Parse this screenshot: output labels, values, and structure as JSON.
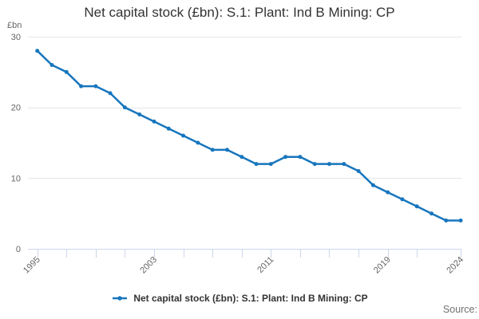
{
  "source": {
    "label": "Source:"
  },
  "colors": {
    "series": "#1776bd",
    "gridline": "#e6e6e6",
    "axis_line": "#ccd6eb",
    "tick": "#ccd6eb",
    "axis_label_text": "#666666",
    "title_text": "#333333",
    "legend_text": "#333333",
    "source_text": "#707070",
    "background": "#ffffff"
  },
  "chart_data": {
    "type": "line",
    "title": "Net capital stock (£bn): S.1: Plant: Ind B Mining: CP",
    "unit_label": "£bn",
    "x": [
      1995,
      1996,
      1997,
      1998,
      1999,
      2000,
      2001,
      2002,
      2003,
      2004,
      2005,
      2006,
      2007,
      2008,
      2009,
      2010,
      2011,
      2012,
      2013,
      2014,
      2015,
      2016,
      2017,
      2018,
      2019,
      2020,
      2021,
      2022,
      2023,
      2024
    ],
    "series": [
      {
        "name": "Net capital stock (£bn): S.1: Plant: Ind B Mining: CP",
        "color": "#1776bd",
        "values": [
          28,
          26,
          25,
          23,
          23,
          22,
          20,
          19,
          18,
          17,
          16,
          15,
          14,
          14,
          13,
          12,
          12,
          13,
          13,
          12,
          12,
          12,
          11,
          9,
          8,
          7,
          6,
          5,
          4,
          4
        ]
      }
    ],
    "ylim": [
      0,
      30
    ],
    "y_ticks": [
      0,
      10,
      20,
      30
    ],
    "x_tick_years": [
      1995,
      1997,
      1999,
      2001,
      2003,
      2005,
      2007,
      2009,
      2011,
      2013,
      2015,
      2017,
      2019,
      2021,
      2024
    ],
    "x_label_years": [
      1995,
      2003,
      2011,
      2019,
      2024
    ],
    "x_label_rotation": -45,
    "grid": "horizontal-only",
    "legend_position": "bottom-center",
    "marker": "circle"
  }
}
